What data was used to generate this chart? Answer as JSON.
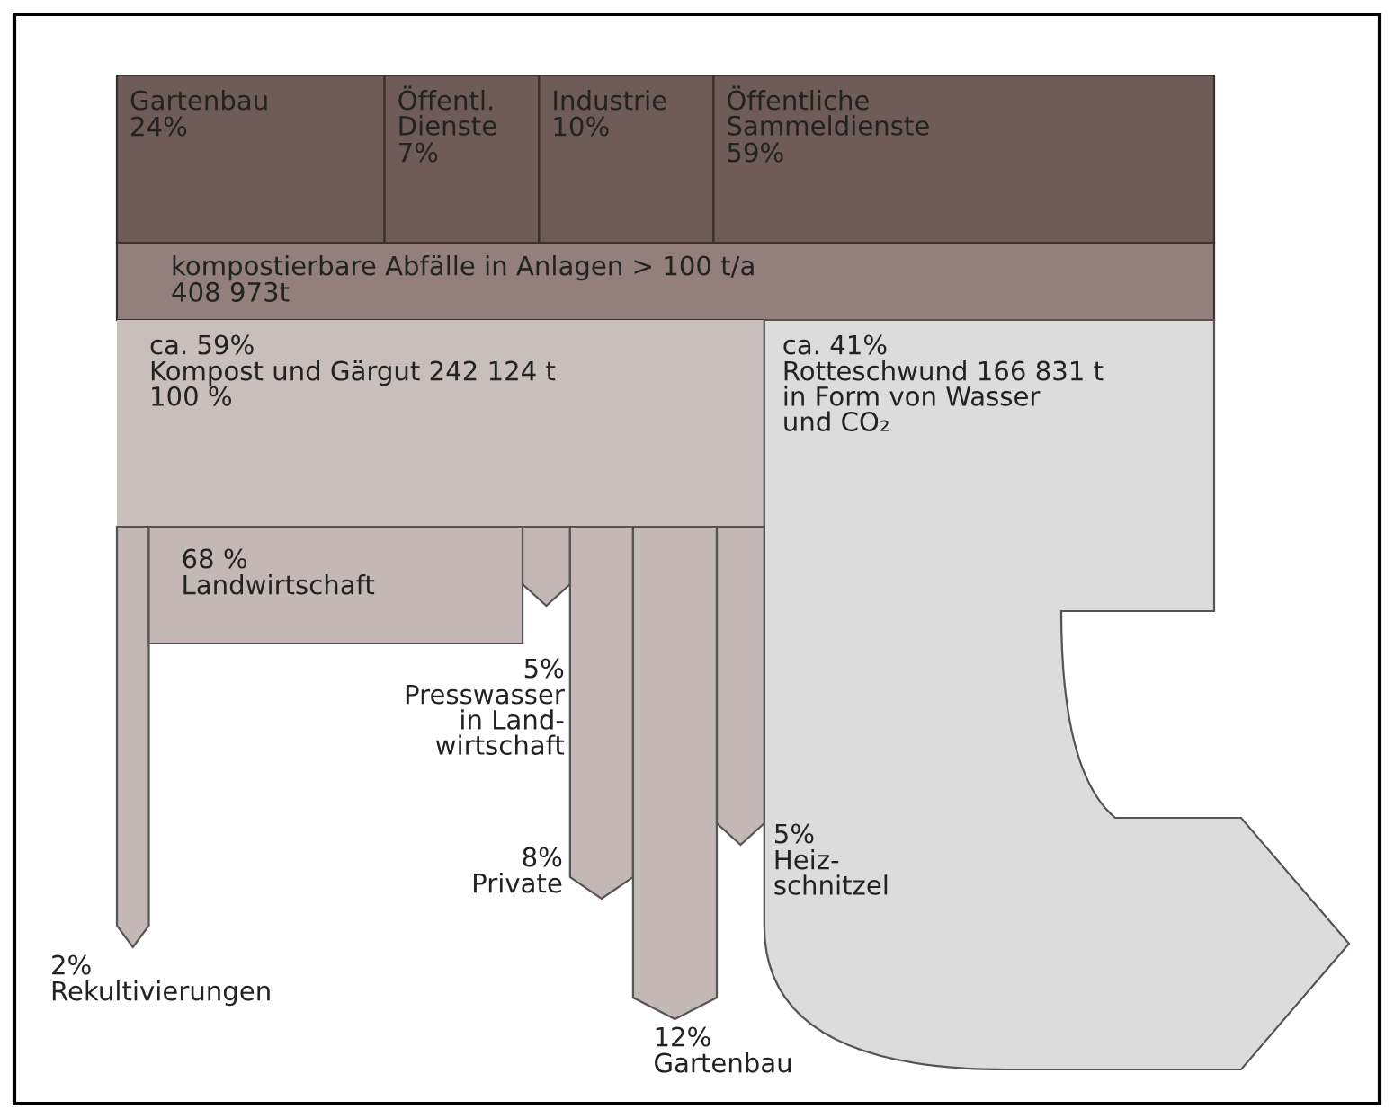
{
  "chart_data": [
    {
      "type": "other",
      "categories": [
        "Gartenbau",
        "Öffentl.\nDienste",
        "Industrie",
        "Öffentliche\nSammeldienste"
      ],
      "values": [
        24,
        7,
        10,
        59
      ],
      "colors": [
        "#6f5b57",
        "#6f5b57",
        "#6f5b57",
        "#6f5b57"
      ],
      "value_labels": [
        "24%",
        "7%",
        "10%",
        "59%"
      ]
    },
    {
      "type": "other",
      "annotations": [
        "kompostierbare Abfälle in Anlagen > 100 t/a\n408 973t"
      ],
      "colors": [
        "#937f7c"
      ]
    },
    {
      "type": "other",
      "categories": [
        "Kompost und Gärgut 242 124 t\n100 %",
        "Rotteschwund 166 831 t\nin Form von Wasser\nund CO₂"
      ],
      "values": [
        59,
        41
      ],
      "colors": [
        "#c8bebc",
        "#dcdcdc"
      ],
      "value_labels": [
        "ca. 59%",
        "ca. 41%"
      ]
    },
    {
      "type": "other",
      "categories": [
        "Rekultivierungen",
        "Landwirtschaft",
        "Presswasser\nin Land-\nwirtschaft",
        "Private",
        "Gartenbau",
        "Heiz-\nschnitzel"
      ],
      "values": [
        2,
        68,
        5,
        8,
        12,
        5
      ],
      "colors": [
        "#c3b8b6",
        "#c3b8b6",
        "#c3b8b6",
        "#c3b8b6",
        "#c3b8b6",
        "#c3b8b6"
      ],
      "value_labels": [
        "2%",
        "68 %",
        "5%",
        "8%",
        "12%",
        "5%"
      ]
    }
  ]
}
